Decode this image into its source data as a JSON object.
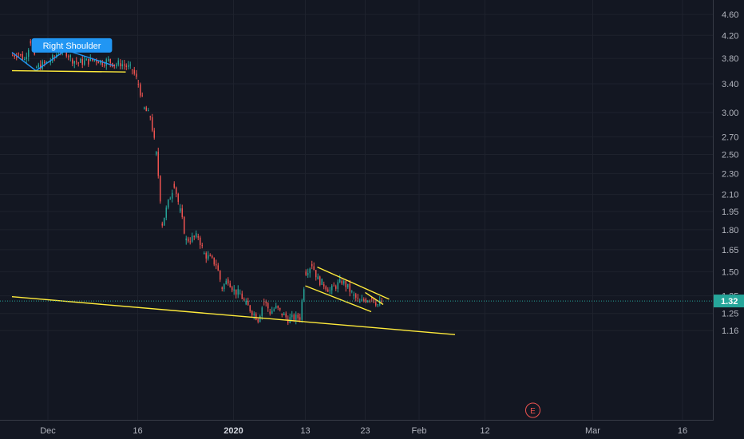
{
  "chart_data": {
    "type": "candlestick",
    "y_axis": {
      "scale": "log",
      "ticks": [
        "4.60",
        "4.20",
        "3.80",
        "3.40",
        "3.00",
        "2.70",
        "2.50",
        "2.30",
        "2.10",
        "1.95",
        "1.80",
        "1.65",
        "1.50",
        "1.35",
        "1.25",
        "1.16"
      ]
    },
    "x_axis": {
      "ticks": [
        {
          "label": "Dec",
          "date": "2019-12-01"
        },
        {
          "label": "16",
          "date": "2019-12-16"
        },
        {
          "label": "2020",
          "date": "2020-01-01",
          "bold": true
        },
        {
          "label": "13",
          "date": "2020-01-13"
        },
        {
          "label": "23",
          "date": "2020-01-23"
        },
        {
          "label": "Feb",
          "date": "2020-02-01"
        },
        {
          "label": "12",
          "date": "2020-02-12"
        },
        {
          "label": "Mar",
          "date": "2020-03-01"
        },
        {
          "label": "16",
          "date": "2020-03-16"
        }
      ]
    },
    "last_price": "1.32",
    "last_price_value": 1.32,
    "annotations": [
      {
        "type": "label",
        "text": "Right Shoulder",
        "date": "2019-12-05",
        "price": 4.02
      }
    ],
    "trendlines": [
      {
        "color": "#2196f3",
        "points": [
          [
            "2019-11-25",
            3.9
          ],
          [
            "2019-11-29",
            3.6
          ],
          [
            "2019-12-04",
            3.94
          ],
          [
            "2019-12-12",
            3.68
          ]
        ]
      },
      {
        "color": "#ffeb3b",
        "points": [
          [
            "2019-11-25",
            3.6
          ],
          [
            "2019-12-14",
            3.58
          ]
        ]
      },
      {
        "color": "#ffeb3b",
        "points": [
          [
            "2019-11-25",
            1.345
          ],
          [
            "2020-02-07",
            1.14
          ]
        ]
      },
      {
        "color": "#ffeb3b",
        "points": [
          [
            "2020-01-15",
            1.53
          ],
          [
            "2020-01-27",
            1.33
          ]
        ]
      },
      {
        "color": "#ffeb3b",
        "points": [
          [
            "2020-01-13",
            1.41
          ],
          [
            "2020-01-24",
            1.26
          ]
        ]
      },
      {
        "color": "#ffeb3b",
        "points": [
          [
            "2020-01-23",
            1.37
          ],
          [
            "2020-01-26",
            1.3
          ]
        ]
      }
    ],
    "events": [
      {
        "label": "E",
        "date": "2020-02-20"
      }
    ],
    "colors": {
      "up": "#26a69a",
      "down": "#ef5350",
      "background": "#131722"
    },
    "daily_closes": [
      [
        "2019-11-25",
        3.85
      ],
      [
        "2019-11-26",
        3.88
      ],
      [
        "2019-11-27",
        3.78
      ],
      [
        "2019-11-28",
        4.1
      ],
      [
        "2019-11-29",
        3.65
      ],
      [
        "2019-12-01",
        3.74
      ],
      [
        "2019-12-02",
        3.82
      ],
      [
        "2019-12-03",
        3.95
      ],
      [
        "2019-12-04",
        3.9
      ],
      [
        "2019-12-05",
        3.78
      ],
      [
        "2019-12-06",
        3.73
      ],
      [
        "2019-12-08",
        3.76
      ],
      [
        "2019-12-09",
        3.78
      ],
      [
        "2019-12-10",
        3.74
      ],
      [
        "2019-12-11",
        3.76
      ],
      [
        "2019-12-12",
        3.7
      ],
      [
        "2019-12-13",
        3.72
      ],
      [
        "2019-12-15",
        3.62
      ],
      [
        "2019-12-16",
        3.4
      ],
      [
        "2019-12-17",
        3.05
      ],
      [
        "2019-12-18",
        2.95
      ],
      [
        "2019-12-19",
        2.5
      ],
      [
        "2019-12-20",
        1.85
      ],
      [
        "2019-12-22",
        2.2
      ],
      [
        "2019-12-23",
        1.95
      ],
      [
        "2019-12-24",
        1.72
      ],
      [
        "2019-12-26",
        1.75
      ],
      [
        "2019-12-27",
        1.62
      ],
      [
        "2019-12-29",
        1.55
      ],
      [
        "2019-12-30",
        1.4
      ],
      [
        "2019-12-31",
        1.45
      ],
      [
        "2020-01-01",
        1.38
      ],
      [
        "2020-01-02",
        1.36
      ],
      [
        "2020-01-03",
        1.3
      ],
      [
        "2020-01-05",
        1.22
      ],
      [
        "2020-01-06",
        1.32
      ],
      [
        "2020-01-07",
        1.26
      ],
      [
        "2020-01-08",
        1.28
      ],
      [
        "2020-01-09",
        1.25
      ],
      [
        "2020-01-10",
        1.22
      ],
      [
        "2020-01-12",
        1.23
      ],
      [
        "2020-01-13",
        1.5
      ],
      [
        "2020-01-14",
        1.55
      ],
      [
        "2020-01-15",
        1.45
      ],
      [
        "2020-01-16",
        1.42
      ],
      [
        "2020-01-17",
        1.38
      ],
      [
        "2020-01-19",
        1.44
      ],
      [
        "2020-01-20",
        1.4
      ],
      [
        "2020-01-21",
        1.35
      ],
      [
        "2020-01-22",
        1.31
      ],
      [
        "2020-01-23",
        1.33
      ],
      [
        "2020-01-24",
        1.34
      ],
      [
        "2020-01-25",
        1.3
      ],
      [
        "2020-01-26",
        1.32
      ]
    ]
  }
}
